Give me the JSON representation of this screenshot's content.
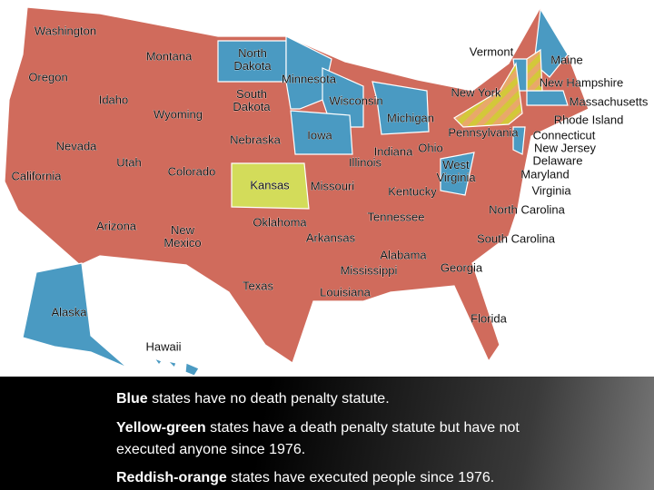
{
  "map": {
    "states": [
      "Washington",
      "Montana",
      "North Dakota",
      "Minnesota",
      "Oregon",
      "Idaho",
      "South Dakota",
      "Wisconsin",
      "Wyoming",
      "Nebraska",
      "Iowa",
      "Michigan",
      "Nevada",
      "Utah",
      "Colorado",
      "Kansas",
      "California",
      "Illinois",
      "Indiana",
      "Ohio",
      "Missouri",
      "Kentucky",
      "West Virginia",
      "Arizona",
      "New Mexico",
      "Oklahoma",
      "Arkansas",
      "Tennessee",
      "Texas",
      "Alabama",
      "Mississippi",
      "Louisiana",
      "Georgia",
      "Florida",
      "South Carolina",
      "North Carolina",
      "Virginia",
      "Maryland",
      "Delaware",
      "New Jersey",
      "Connecticut",
      "Rhode Island",
      "Massachusetts",
      "New Hampshire",
      "Vermont",
      "Maine",
      "New York",
      "Pennsylvania",
      "Alaska",
      "Hawaii"
    ]
  },
  "legend": [
    {
      "key": "Blue",
      "text": " states have no death penalty statute."
    },
    {
      "key": "Yellow-green",
      "text": " states have a death penalty statute but have not executed anyone since 1976."
    },
    {
      "key": "Reddish-orange",
      "text": " states have executed people since 1976."
    }
  ]
}
